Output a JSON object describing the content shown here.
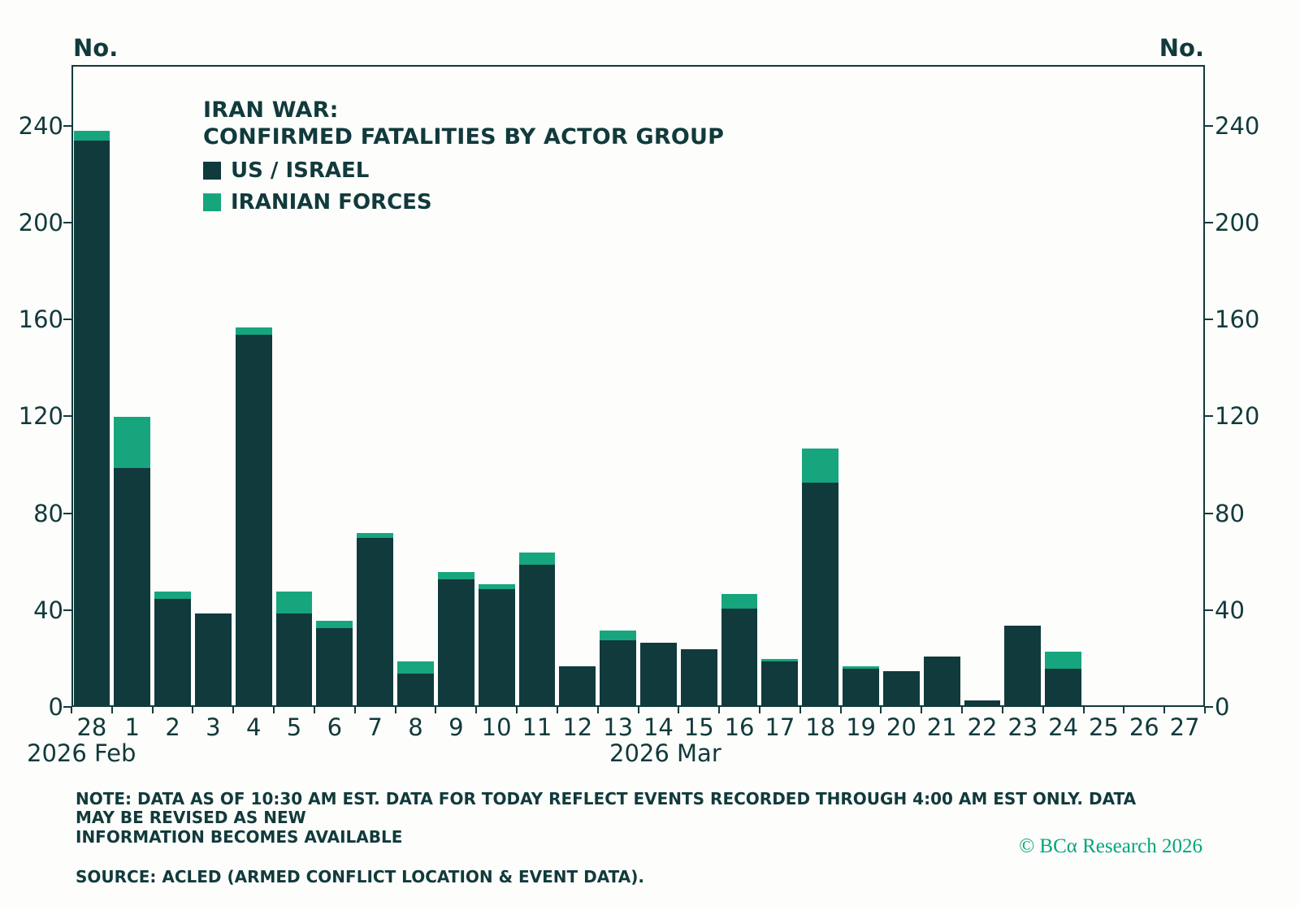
{
  "chart_data": {
    "type": "bar",
    "stacked": true,
    "title_line1": "IRAN WAR:",
    "title_line2": "CONFIRMED FATALITIES BY ACTOR GROUP",
    "ylabel_left": "No.",
    "ylabel_right": "No.",
    "ylim": [
      0,
      265
    ],
    "yticks": [
      0,
      40,
      80,
      120,
      160,
      200,
      240
    ],
    "grid": false,
    "legend_position": "top-left-inside",
    "categories": [
      "28",
      "1",
      "2",
      "3",
      "4",
      "5",
      "6",
      "7",
      "8",
      "9",
      "10",
      "11",
      "12",
      "13",
      "14",
      "15",
      "16",
      "17",
      "18",
      "19",
      "20",
      "21",
      "22",
      "23",
      "24",
      "25",
      "26",
      "27"
    ],
    "x_group_left": "2026 Feb",
    "x_group_right": "2026 Mar",
    "series": [
      {
        "name": "US / ISRAEL",
        "color": "#113a3c",
        "values": [
          233,
          98,
          44,
          38,
          153,
          38,
          32,
          69,
          13,
          52,
          48,
          58,
          16,
          27,
          26,
          23,
          40,
          18,
          92,
          15,
          14,
          20,
          2,
          33,
          15,
          0,
          0,
          0
        ]
      },
      {
        "name": "IRANIAN FORCES",
        "color": "#17a57e",
        "values": [
          4,
          21,
          3,
          0,
          3,
          9,
          3,
          2,
          5,
          3,
          2,
          5,
          0,
          4,
          0,
          0,
          6,
          1,
          14,
          1,
          0,
          0,
          0,
          0,
          7,
          0,
          0,
          0
        ]
      }
    ]
  },
  "notes": {
    "note": "NOTE: DATA AS OF 10:30 AM EST. DATA FOR TODAY REFLECT EVENTS RECORDED THROUGH 4:00 AM EST ONLY. DATA MAY BE REVISED AS NEW\nINFORMATION BECOMES AVAILABLE",
    "source": "SOURCE: ACLED (ARMED CONFLICT LOCATION & EVENT DATA)."
  },
  "branding": {
    "copyright": "© BCα Research 2026"
  },
  "colors": {
    "text": "#113a3c",
    "accent_green": "#17a57e",
    "copyright_green": "#00a678",
    "background": "#fdfdfb"
  }
}
